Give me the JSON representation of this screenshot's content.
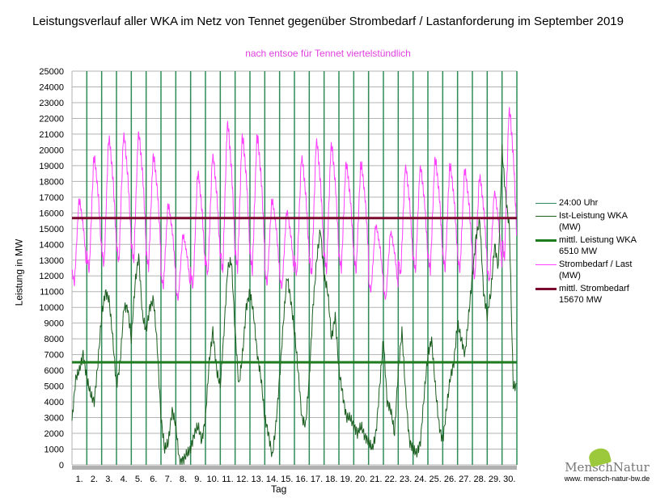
{
  "title": "Leistungsverlauf aller WKA im Netz von Tennet gegenüber  Strombedarf / Lastanforderung im September 2019",
  "subtitle": "nach entsoe für Tennet viertelstündlich",
  "logo": {
    "name": "MenschNatur",
    "url": "www. mensch-natur-bw.de"
  },
  "colors": {
    "dayline": "#2e8b57",
    "wind": "#1b5e20",
    "windMean": "#1e7b1e",
    "load": "#ff40ff",
    "loadMean": "#7a0a2e"
  },
  "chart_data": {
    "type": "line",
    "title": "Leistungsverlauf aller WKA im Netz von Tennet gegenüber  Strombedarf / Lastanforderung im September 2019",
    "xlabel": "Tag",
    "ylabel": "Leistung in MW",
    "ylim": [
      0,
      25000
    ],
    "ytick_step": 1000,
    "x_tick_labels": [
      "1.",
      "2.",
      "3.",
      "4.",
      "5.",
      "6.",
      "7.",
      "8.",
      "9.",
      "10.",
      "11.",
      "12.",
      "13.",
      "14.",
      "15.",
      "16.",
      "17.",
      "18.",
      "19.",
      "20.",
      "21.",
      "22.",
      "23.",
      "24.",
      "25.",
      "26.",
      "27.",
      "28.",
      "29.",
      "30."
    ],
    "legend": [
      "24:00 Uhr",
      "Ist-Leistung WKA (MW)",
      "mittl. Leistung WKA 6510 MW",
      "Strombedarf / Last (MW)",
      "mittl. Strombedarf 15670 MW"
    ],
    "legend_position": "right",
    "wind_mean": 6510,
    "load_mean": 15670,
    "load_daily_max": [
      16700,
      19400,
      20600,
      20800,
      20900,
      19500,
      16400,
      14500,
      18400,
      19500,
      21500,
      20700,
      20700,
      16700,
      16000,
      19400,
      20400,
      20200,
      19000,
      19000,
      15100,
      14700,
      18800,
      18800,
      19300,
      18900,
      18600,
      18200,
      17200,
      22400
    ],
    "load_daily_min": [
      11500,
      12300,
      12600,
      12800,
      12900,
      12500,
      11300,
      10500,
      11200,
      12000,
      12200,
      12400,
      12300,
      11500,
      11200,
      12000,
      12000,
      12300,
      12400,
      12300,
      11000,
      10500,
      12000,
      12300,
      12300,
      12400,
      12300,
      11800,
      11600,
      13000
    ],
    "wind_6h": [
      2800,
      5500,
      6000,
      7000,
      5500,
      4500,
      4000,
      6500,
      9500,
      11000,
      10500,
      8000,
      5000,
      6500,
      10000,
      10000,
      8000,
      11500,
      13300,
      9500,
      8500,
      10000,
      10500,
      7500,
      3000,
      1000,
      1500,
      3500,
      2500,
      200,
      300,
      700,
      1000,
      2000,
      2500,
      1500,
      3000,
      6500,
      8500,
      6000,
      5000,
      8500,
      12500,
      13000,
      8500,
      5000,
      7000,
      10000,
      11000,
      9500,
      7000,
      5500,
      3000,
      2000,
      500,
      2500,
      5500,
      9000,
      12000,
      10500,
      8500,
      6000,
      3000,
      2500,
      5500,
      10000,
      13000,
      15000,
      12000,
      11000,
      8000,
      9500,
      6000,
      4500,
      3000,
      3000,
      2500,
      2000,
      2500,
      1800,
      1500,
      1000,
      2000,
      5000,
      8000,
      4000,
      3500,
      2000,
      6000,
      8500,
      4500,
      1500,
      1000,
      700,
      1500,
      4500,
      7000,
      8000,
      5000,
      2500,
      1500,
      3500,
      5500,
      6500,
      9000,
      8000,
      7000,
      9500,
      12000,
      14500,
      15500,
      11000,
      9500,
      11000,
      14000,
      12500,
      20000,
      17000,
      15000,
      5000
    ]
  }
}
